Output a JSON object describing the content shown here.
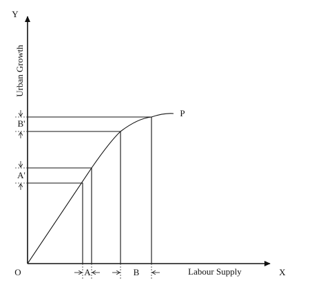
{
  "axes": {
    "y_axis_label": "Y",
    "x_axis_label": "X",
    "origin_label": "O",
    "y_title": "Urban Growth",
    "x_title": "Labour Supply"
  },
  "curve": {
    "label": "P"
  },
  "intervals": {
    "x": [
      "A",
      "B"
    ],
    "y": [
      "A'",
      "B'"
    ]
  }
}
